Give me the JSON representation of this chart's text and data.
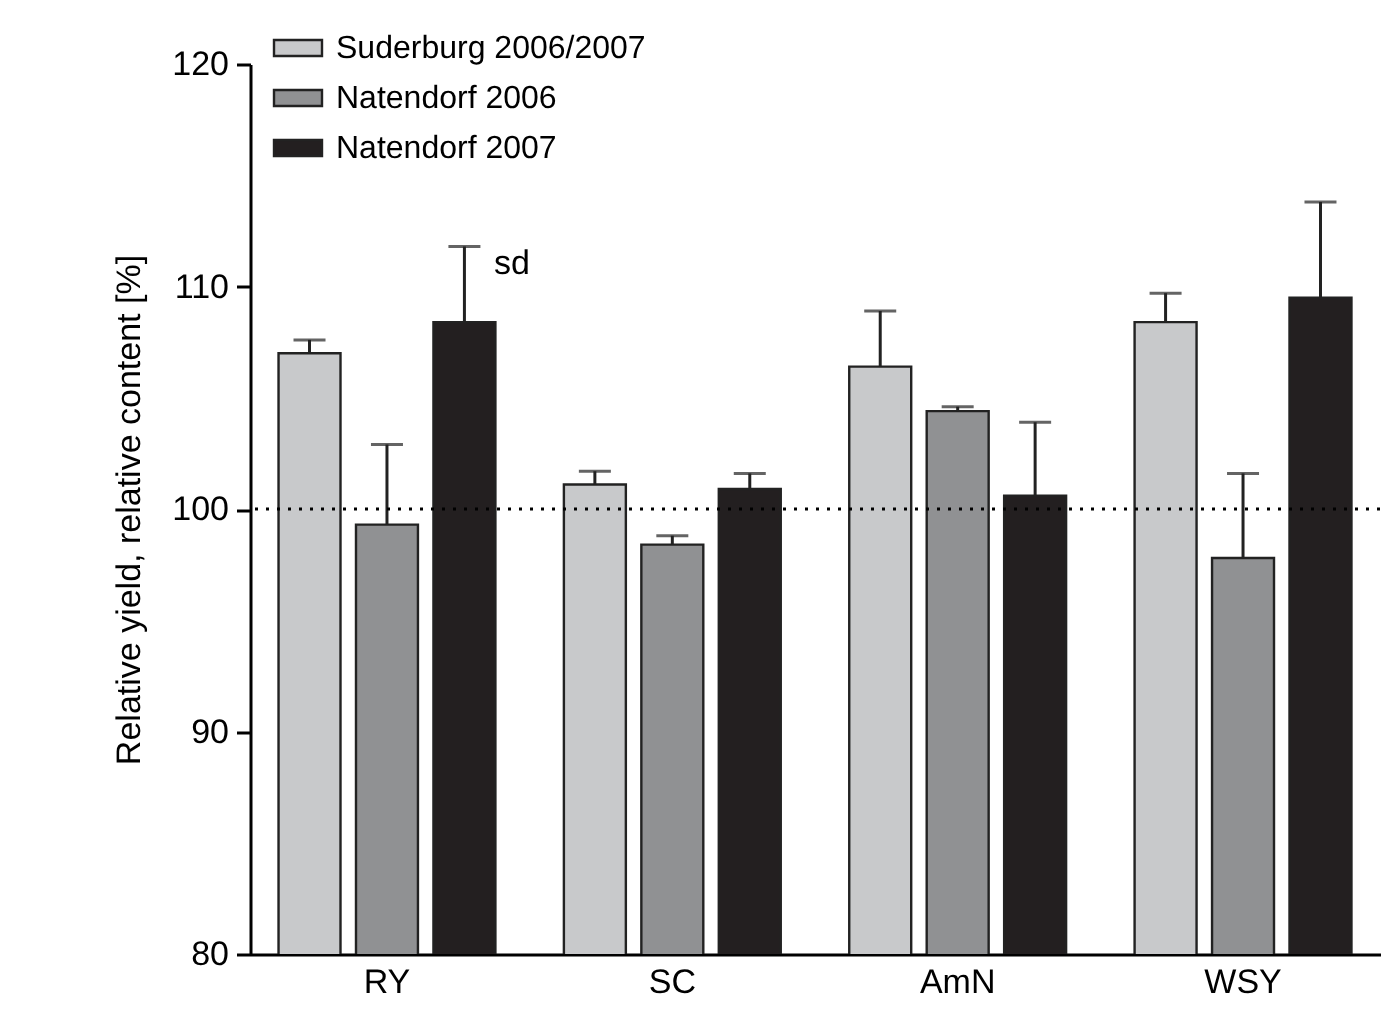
{
  "chart_data": {
    "type": "bar",
    "ylabel": "Relative yield, relative content [%]",
    "categories": [
      "RY",
      "SC",
      "AmN",
      "WSY"
    ],
    "series": [
      {
        "name": "Suderburg 2006/2007",
        "color": "#c8c9cb",
        "values": [
          107.0,
          101.1,
          106.4,
          108.4
        ],
        "errors": [
          [
            107.0,
            107.6
          ],
          [
            101.1,
            101.7
          ],
          [
            106.4,
            108.9
          ],
          [
            108.4,
            109.7
          ]
        ]
      },
      {
        "name": "Natendorf 2006",
        "color": "#909193",
        "values": [
          99.3,
          98.4,
          104.4,
          97.8
        ],
        "errors": [
          [
            99.3,
            102.9
          ],
          [
            98.4,
            98.8
          ],
          [
            104.4,
            104.6
          ],
          [
            97.8,
            101.6
          ]
        ]
      },
      {
        "name": "Natendorf 2007",
        "color": "#231f20",
        "values": [
          108.4,
          100.9,
          100.6,
          109.5
        ],
        "errors": [
          [
            108.4,
            111.8
          ],
          [
            100.9,
            101.6
          ],
          [
            100.6,
            103.9
          ],
          [
            109.5,
            113.8
          ]
        ]
      }
    ],
    "ylim": [
      80,
      120
    ],
    "yticks": [
      80,
      90,
      100,
      110,
      120
    ],
    "grid": false,
    "legend": "top left",
    "ref_lines": [
      {
        "axis": "y",
        "value": 100,
        "line_style": "dotted"
      }
    ],
    "annotations": [
      "sd"
    ]
  }
}
